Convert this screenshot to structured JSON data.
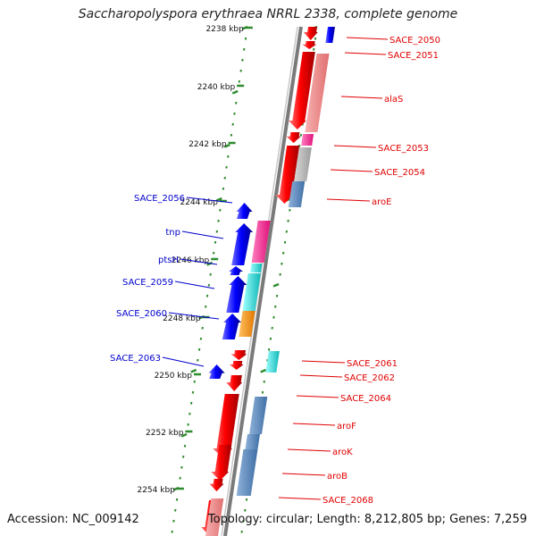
{
  "title": "Saccharopolyspora erythraea NRRL 2338, complete genome",
  "accession": "Accession: NC_009142",
  "topology": "Topology: circular; Length: 8,212,805 bp; Genes: 7,259",
  "colors": {
    "forward": "#ff0000",
    "reverse": "#0000ff",
    "backbone": "#888888",
    "tick": "#228b22"
  },
  "scale_labels": [
    "2238 kbp",
    "2240 kbp",
    "2242 kbp",
    "2244 kbp",
    "2246 kbp",
    "2248 kbp",
    "2250 kbp",
    "2252 kbp",
    "2254 kbp"
  ],
  "genes_right": [
    "SACE_2050",
    "SACE_2051",
    "alaS",
    "SACE_2053",
    "SACE_2054",
    "aroE",
    "SACE_2061",
    "SACE_2062",
    "SACE_2064",
    "aroF",
    "aroK",
    "aroB",
    "SACE_2068"
  ],
  "genes_left": [
    "SACE_2056",
    "tnp",
    "ptsH",
    "SACE_2059",
    "SACE_2060",
    "SACE_2063"
  ]
}
